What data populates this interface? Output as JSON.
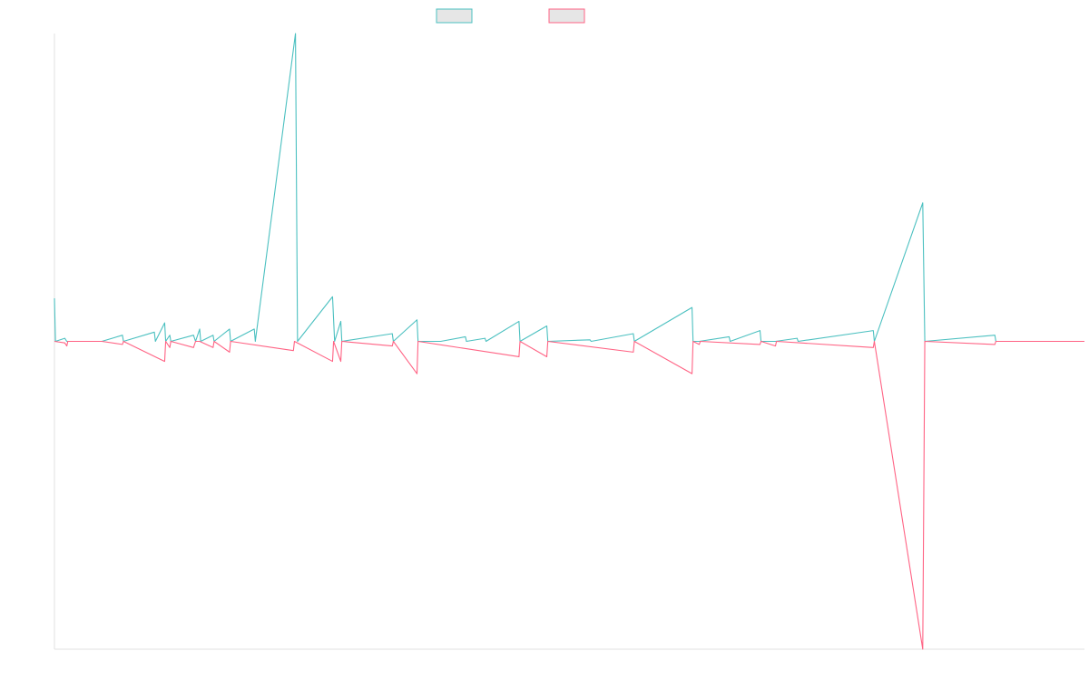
{
  "chart_data": {
    "type": "line",
    "title": "",
    "xlabel": "",
    "ylabel": "",
    "grid": false,
    "legend_position": "top-center",
    "x_range": [
      0,
      1000
    ],
    "y_range": [
      -1.0,
      1.0
    ],
    "series": [
      {
        "name": "",
        "color": "#4BC0C0",
        "fill": "#E6E6E6",
        "points": [
          [
            0,
            0.14
          ],
          [
            1,
            0.0
          ],
          [
            10,
            0.01
          ],
          [
            12,
            0.0
          ],
          [
            25,
            0.0
          ],
          [
            46,
            0.0
          ],
          [
            66,
            0.02
          ],
          [
            67,
            0.0
          ],
          [
            97,
            0.03
          ],
          [
            98,
            0.0
          ],
          [
            107,
            0.06
          ],
          [
            108,
            0.0
          ],
          [
            112,
            0.02
          ],
          [
            113,
            0.0
          ],
          [
            135,
            0.02
          ],
          [
            137,
            0.0
          ],
          [
            141,
            0.04
          ],
          [
            142,
            0.0
          ],
          [
            154,
            0.02
          ],
          [
            155,
            0.0
          ],
          [
            170,
            0.04
          ],
          [
            171,
            0.0
          ],
          [
            194,
            0.04
          ],
          [
            195,
            0.0
          ],
          [
            234,
            1.0
          ],
          [
            236,
            0.0
          ],
          [
            270,
            0.145
          ],
          [
            272,
            0.0
          ],
          [
            278,
            0.065
          ],
          [
            279,
            0.0
          ],
          [
            328,
            0.025
          ],
          [
            329,
            0.0
          ],
          [
            352,
            0.07
          ],
          [
            353,
            0.0
          ],
          [
            375,
            0.0
          ],
          [
            399,
            0.015
          ],
          [
            400,
            0.0
          ],
          [
            418,
            0.01
          ],
          [
            419,
            0.0
          ],
          [
            451,
            0.065
          ],
          [
            452,
            0.0
          ],
          [
            478,
            0.05
          ],
          [
            479,
            0.0
          ],
          [
            520,
            0.005
          ],
          [
            521,
            0.0
          ],
          [
            562,
            0.025
          ],
          [
            563,
            0.0
          ],
          [
            619,
            0.11
          ],
          [
            620,
            0.0
          ],
          [
            626,
            0.0
          ],
          [
            655,
            0.015
          ],
          [
            656,
            0.0
          ],
          [
            685,
            0.035
          ],
          [
            686,
            0.0
          ],
          [
            700,
            0.0
          ],
          [
            721,
            0.01
          ],
          [
            722,
            0.0
          ],
          [
            795,
            0.035
          ],
          [
            796,
            0.0
          ],
          [
            843,
            0.45
          ],
          [
            845,
            0.0
          ],
          [
            913,
            0.02
          ],
          [
            914,
            0.0
          ],
          [
            1000,
            0.0
          ]
        ]
      },
      {
        "name": "",
        "color": "#FF6384",
        "fill": "#E6E6E6",
        "points": [
          [
            0,
            0.0
          ],
          [
            10,
            -0.005
          ],
          [
            12,
            -0.015
          ],
          [
            13,
            0.0
          ],
          [
            25,
            0.0
          ],
          [
            46,
            0.0
          ],
          [
            66,
            -0.01
          ],
          [
            67,
            0.0
          ],
          [
            107,
            -0.065
          ],
          [
            108,
            0.0
          ],
          [
            112,
            -0.02
          ],
          [
            113,
            0.0
          ],
          [
            135,
            -0.02
          ],
          [
            137,
            0.0
          ],
          [
            141,
            0.0
          ],
          [
            154,
            -0.02
          ],
          [
            155,
            0.0
          ],
          [
            170,
            -0.035
          ],
          [
            171,
            0.0
          ],
          [
            232,
            -0.03
          ],
          [
            233,
            0.0
          ],
          [
            270,
            -0.065
          ],
          [
            271,
            0.0
          ],
          [
            278,
            -0.065
          ],
          [
            279,
            0.0
          ],
          [
            328,
            -0.015
          ],
          [
            329,
            0.0
          ],
          [
            352,
            -0.105
          ],
          [
            353,
            0.0
          ],
          [
            451,
            -0.05
          ],
          [
            452,
            0.0
          ],
          [
            478,
            -0.05
          ],
          [
            479,
            0.0
          ],
          [
            562,
            -0.035
          ],
          [
            563,
            0.0
          ],
          [
            619,
            -0.105
          ],
          [
            620,
            0.0
          ],
          [
            626,
            -0.01
          ],
          [
            627,
            0.0
          ],
          [
            685,
            -0.01
          ],
          [
            686,
            0.0
          ],
          [
            700,
            -0.015
          ],
          [
            701,
            0.0
          ],
          [
            795,
            -0.02
          ],
          [
            796,
            0.0
          ],
          [
            843,
            -1.0
          ],
          [
            845,
            0.0
          ],
          [
            913,
            -0.01
          ],
          [
            914,
            0.0
          ],
          [
            1000,
            0.0
          ]
        ]
      }
    ]
  }
}
